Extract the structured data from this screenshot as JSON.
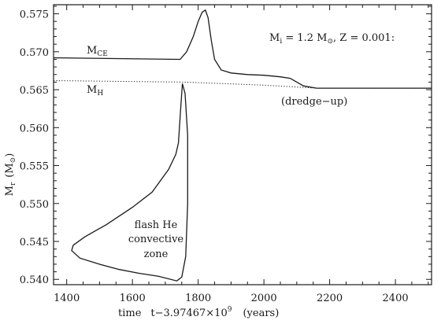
{
  "chart_data": {
    "type": "line",
    "title": "",
    "annotation_params": {
      "mass_label": "M",
      "mass_sub": "i",
      "mass_value": " = 1.2 M",
      "sun_symbol": "⊙",
      "z_text": ", Z = 0.001:"
    },
    "xlabel": {
      "prefix": "time",
      "expr": "t−3.97467×10",
      "exp": "9",
      "units": "(years)"
    },
    "ylabel": {
      "main": "M",
      "sub": "r",
      "units": "(M",
      "sun": "⊙",
      "close": ")"
    },
    "xlim": [
      1360,
      2510
    ],
    "ylim": [
      0.5393,
      0.5762
    ],
    "x_ticks": [
      1400,
      1600,
      1800,
      2000,
      2200,
      2400
    ],
    "x_tick_labels": [
      "1400",
      "1600",
      "1800",
      "2000",
      "2200",
      "2400"
    ],
    "y_ticks": [
      0.54,
      0.545,
      0.55,
      0.555,
      0.56,
      0.565,
      0.57,
      0.575
    ],
    "y_tick_labels": [
      "0.540",
      "0.545",
      "0.550",
      "0.555",
      "0.560",
      "0.565",
      "0.570",
      "0.575"
    ],
    "series": [
      {
        "name": "M_CE",
        "label_main": "M",
        "label_sub": "CE",
        "style": "solid",
        "points": [
          [
            1360,
            0.5692
          ],
          [
            1745,
            0.569
          ],
          [
            1765,
            0.57
          ],
          [
            1785,
            0.572
          ],
          [
            1800,
            0.574
          ],
          [
            1812,
            0.5752
          ],
          [
            1822,
            0.5755
          ],
          [
            1830,
            0.5745
          ],
          [
            1840,
            0.5715
          ],
          [
            1850,
            0.569
          ],
          [
            1870,
            0.5676
          ],
          [
            1900,
            0.5672
          ],
          [
            1950,
            0.567
          ],
          [
            2000,
            0.5669
          ],
          [
            2050,
            0.5667
          ],
          [
            2080,
            0.5665
          ],
          [
            2100,
            0.566
          ],
          [
            2120,
            0.5655
          ],
          [
            2160,
            0.5652
          ],
          [
            2300,
            0.5652
          ],
          [
            2510,
            0.5652
          ]
        ]
      },
      {
        "name": "M_H",
        "label_main": "M",
        "label_sub": "H",
        "style": "dotted",
        "points": [
          [
            1360,
            0.5662
          ],
          [
            1760,
            0.566
          ],
          [
            2000,
            0.5656
          ],
          [
            2160,
            0.5652
          ],
          [
            2510,
            0.5652
          ]
        ]
      },
      {
        "name": "flash He convective zone",
        "style": "solid",
        "points": [
          [
            1752,
            0.5658
          ],
          [
            1746,
            0.562
          ],
          [
            1740,
            0.558
          ],
          [
            1732,
            0.5565
          ],
          [
            1710,
            0.5545
          ],
          [
            1660,
            0.5515
          ],
          [
            1600,
            0.5495
          ],
          [
            1520,
            0.5472
          ],
          [
            1455,
            0.5456
          ],
          [
            1420,
            0.5445
          ],
          [
            1415,
            0.5438
          ],
          [
            1440,
            0.5428
          ],
          [
            1500,
            0.542
          ],
          [
            1560,
            0.5413
          ],
          [
            1620,
            0.5408
          ],
          [
            1680,
            0.5404
          ],
          [
            1735,
            0.5398
          ],
          [
            1750,
            0.5403
          ],
          [
            1762,
            0.543
          ],
          [
            1768,
            0.55
          ],
          [
            1768,
            0.559
          ],
          [
            1760,
            0.5645
          ],
          [
            1752,
            0.5658
          ]
        ]
      }
    ],
    "annotations": [
      "(dredge−up)",
      "flash He",
      "convective",
      "zone"
    ],
    "grid": false,
    "legend": "none"
  }
}
